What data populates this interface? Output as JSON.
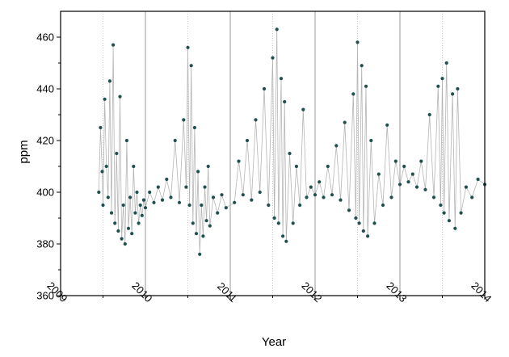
{
  "chart_data": {
    "type": "scatter",
    "title": "",
    "xlabel": "Year",
    "ylabel": "ppm",
    "xlim": [
      2009,
      2014
    ],
    "ylim": [
      360,
      470
    ],
    "x_ticks": [
      "2009",
      "2010",
      "2011",
      "2012",
      "2013",
      "2014"
    ],
    "y_ticks": [
      "360",
      "380",
      "400",
      "420",
      "440",
      "460"
    ],
    "grid": "solid vertical lines at each year; dotted vertical lines at mid-year",
    "legend": "none",
    "series": [
      {
        "style": "dark teal dots connected by thin grey lines",
        "points": [
          [
            2009.45,
            400
          ],
          [
            2009.47,
            425
          ],
          [
            2009.49,
            408
          ],
          [
            2009.5,
            395
          ],
          [
            2009.52,
            436
          ],
          [
            2009.54,
            410
          ],
          [
            2009.56,
            398
          ],
          [
            2009.58,
            443
          ],
          [
            2009.6,
            392
          ],
          [
            2009.62,
            457
          ],
          [
            2009.64,
            388
          ],
          [
            2009.66,
            415
          ],
          [
            2009.68,
            385
          ],
          [
            2009.7,
            437
          ],
          [
            2009.72,
            382
          ],
          [
            2009.74,
            395
          ],
          [
            2009.76,
            380
          ],
          [
            2009.78,
            420
          ],
          [
            2009.8,
            386
          ],
          [
            2009.82,
            398
          ],
          [
            2009.84,
            384
          ],
          [
            2009.86,
            410
          ],
          [
            2009.88,
            392
          ],
          [
            2009.9,
            400
          ],
          [
            2009.92,
            388
          ],
          [
            2009.94,
            395
          ],
          [
            2009.96,
            391
          ],
          [
            2009.98,
            397
          ],
          [
            2010.0,
            394
          ],
          [
            2010.05,
            400
          ],
          [
            2010.1,
            396
          ],
          [
            2010.15,
            402
          ],
          [
            2010.2,
            397
          ],
          [
            2010.25,
            405
          ],
          [
            2010.3,
            398
          ],
          [
            2010.35,
            420
          ],
          [
            2010.4,
            396
          ],
          [
            2010.45,
            428
          ],
          [
            2010.48,
            402
          ],
          [
            2010.5,
            456
          ],
          [
            2010.52,
            395
          ],
          [
            2010.54,
            449
          ],
          [
            2010.56,
            388
          ],
          [
            2010.58,
            425
          ],
          [
            2010.6,
            384
          ],
          [
            2010.62,
            408
          ],
          [
            2010.64,
            376
          ],
          [
            2010.66,
            395
          ],
          [
            2010.68,
            383
          ],
          [
            2010.7,
            402
          ],
          [
            2010.72,
            389
          ],
          [
            2010.74,
            410
          ],
          [
            2010.76,
            387
          ],
          [
            2010.8,
            398
          ],
          [
            2010.85,
            392
          ],
          [
            2010.9,
            399
          ],
          [
            2010.95,
            394
          ],
          [
            2011.05,
            396
          ],
          [
            2011.1,
            412
          ],
          [
            2011.15,
            399
          ],
          [
            2011.2,
            420
          ],
          [
            2011.25,
            397
          ],
          [
            2011.3,
            428
          ],
          [
            2011.35,
            400
          ],
          [
            2011.4,
            440
          ],
          [
            2011.45,
            395
          ],
          [
            2011.5,
            452
          ],
          [
            2011.52,
            390
          ],
          [
            2011.55,
            463
          ],
          [
            2011.57,
            388
          ],
          [
            2011.6,
            444
          ],
          [
            2011.62,
            383
          ],
          [
            2011.64,
            435
          ],
          [
            2011.66,
            381
          ],
          [
            2011.7,
            415
          ],
          [
            2011.74,
            388
          ],
          [
            2011.78,
            410
          ],
          [
            2011.82,
            395
          ],
          [
            2011.86,
            432
          ],
          [
            2011.9,
            398
          ],
          [
            2011.95,
            402
          ],
          [
            2012.0,
            399
          ],
          [
            2012.05,
            404
          ],
          [
            2012.1,
            398
          ],
          [
            2012.15,
            410
          ],
          [
            2012.2,
            399
          ],
          [
            2012.25,
            418
          ],
          [
            2012.3,
            397
          ],
          [
            2012.35,
            427
          ],
          [
            2012.4,
            393
          ],
          [
            2012.45,
            438
          ],
          [
            2012.48,
            390
          ],
          [
            2012.5,
            458
          ],
          [
            2012.52,
            388
          ],
          [
            2012.55,
            449
          ],
          [
            2012.57,
            385
          ],
          [
            2012.6,
            441
          ],
          [
            2012.62,
            383
          ],
          [
            2012.66,
            420
          ],
          [
            2012.7,
            388
          ],
          [
            2012.75,
            407
          ],
          [
            2012.8,
            395
          ],
          [
            2012.85,
            426
          ],
          [
            2012.9,
            398
          ],
          [
            2012.95,
            412
          ],
          [
            2013.0,
            403
          ],
          [
            2013.05,
            410
          ],
          [
            2013.1,
            404
          ],
          [
            2013.15,
            407
          ],
          [
            2013.2,
            402
          ],
          [
            2013.25,
            412
          ],
          [
            2013.3,
            401
          ],
          [
            2013.35,
            430
          ],
          [
            2013.4,
            398
          ],
          [
            2013.45,
            441
          ],
          [
            2013.48,
            395
          ],
          [
            2013.5,
            444
          ],
          [
            2013.52,
            392
          ],
          [
            2013.55,
            450
          ],
          [
            2013.58,
            389
          ],
          [
            2013.62,
            438
          ],
          [
            2013.65,
            386
          ],
          [
            2013.68,
            440
          ],
          [
            2013.72,
            392
          ],
          [
            2013.78,
            402
          ],
          [
            2013.85,
            398
          ],
          [
            2013.92,
            405
          ],
          [
            2014.0,
            403
          ]
        ]
      }
    ]
  }
}
